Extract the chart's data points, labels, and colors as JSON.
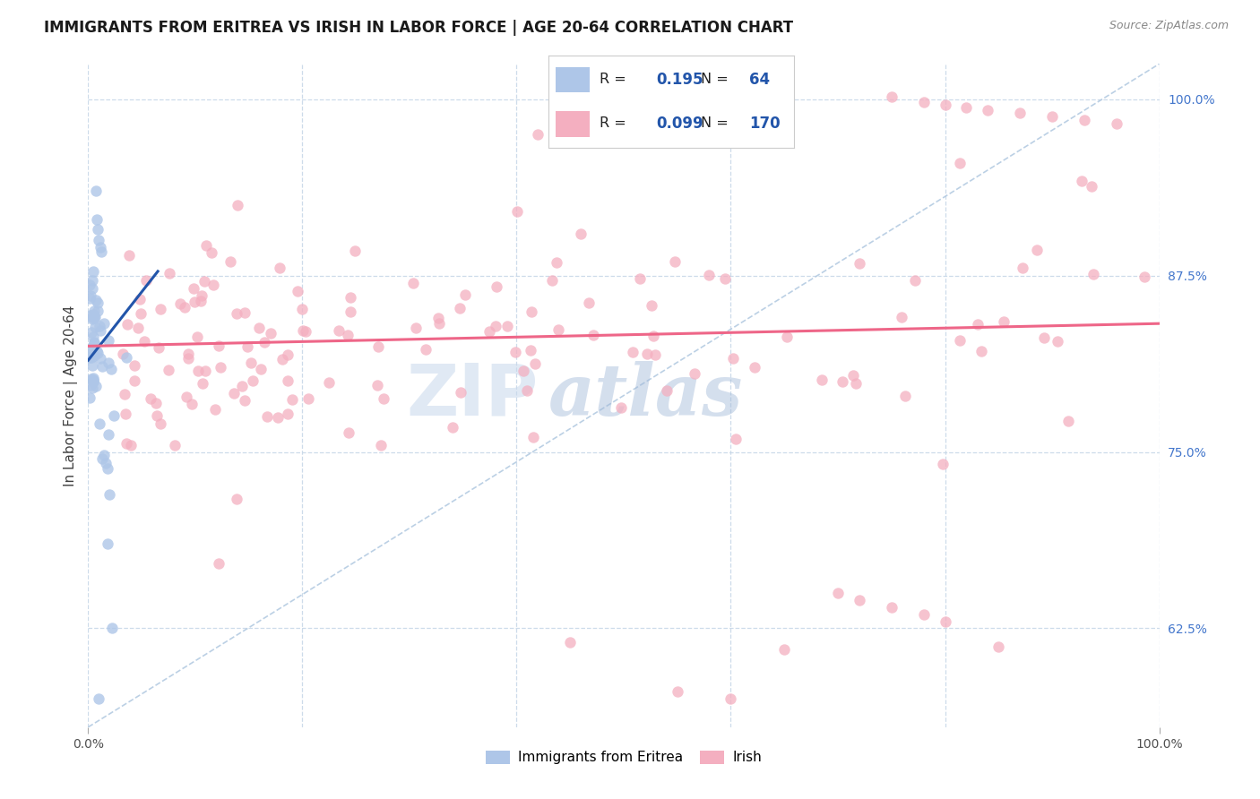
{
  "title": "IMMIGRANTS FROM ERITREA VS IRISH IN LABOR FORCE | AGE 20-64 CORRELATION CHART",
  "source": "Source: ZipAtlas.com",
  "ylabel": "In Labor Force | Age 20-64",
  "xlim": [
    0.0,
    1.0
  ],
  "ylim": [
    0.555,
    1.025
  ],
  "y_tick_vals_right": [
    0.625,
    0.75,
    0.875,
    1.0
  ],
  "y_tick_labels_right": [
    "62.5%",
    "75.0%",
    "87.5%",
    "100.0%"
  ],
  "legend_blue_r": "0.195",
  "legend_blue_n": "64",
  "legend_pink_r": "0.099",
  "legend_pink_n": "170",
  "blue_color": "#aec6e8",
  "pink_color": "#f4afc0",
  "blue_line_color": "#2255aa",
  "pink_line_color": "#ee6688",
  "dashed_line_color": "#b0c8e0",
  "background_color": "#ffffff",
  "grid_color": "#c8d8e8",
  "watermark_zip_color": "#c8d8ec",
  "watermark_atlas_color": "#a0b8d8",
  "title_fontsize": 12,
  "source_fontsize": 9,
  "legend_fontsize": 12,
  "axis_label_fontsize": 11
}
